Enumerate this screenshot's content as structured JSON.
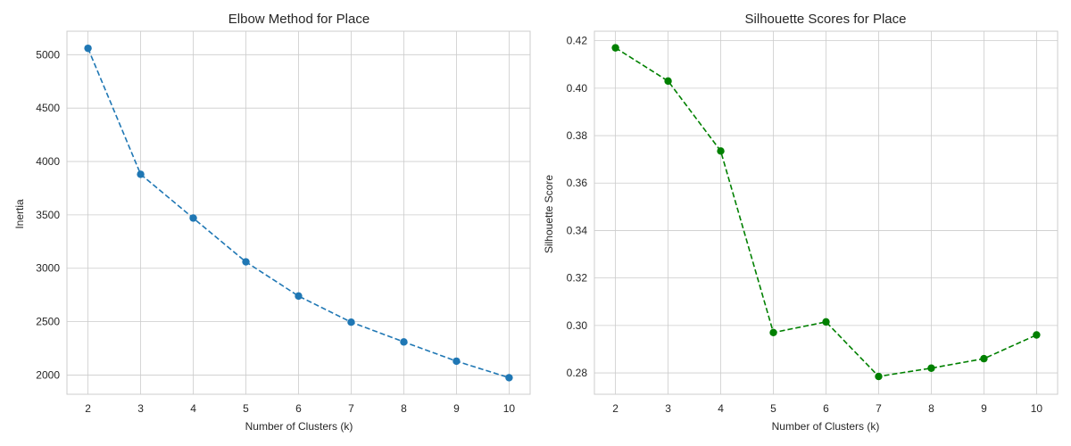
{
  "chart_data": [
    {
      "type": "line",
      "title": "Elbow Method for Place",
      "xlabel": "Number of Clusters (k)",
      "ylabel": "Inertia",
      "x": [
        2,
        3,
        4,
        5,
        6,
        7,
        8,
        9,
        10
      ],
      "y": [
        5060,
        3880,
        3470,
        3060,
        2740,
        2495,
        2310,
        2130,
        1975
      ],
      "xlim": [
        1.6,
        10.4
      ],
      "ylim": [
        1820,
        5220
      ],
      "xticks": [
        2,
        3,
        4,
        5,
        6,
        7,
        8,
        9,
        10
      ],
      "yticks": [
        2000,
        2500,
        3000,
        3500,
        4000,
        4500,
        5000
      ],
      "line_style": "dashed",
      "marker": "circle",
      "color": "#1f77b4",
      "grid": true
    },
    {
      "type": "line",
      "title": "Silhouette Scores for Place",
      "xlabel": "Number of Clusters (k)",
      "ylabel": "Silhouette Score",
      "x": [
        2,
        3,
        4,
        5,
        6,
        7,
        8,
        9,
        10
      ],
      "y": [
        0.417,
        0.403,
        0.3735,
        0.297,
        0.3015,
        0.2785,
        0.282,
        0.286,
        0.296
      ],
      "xlim": [
        1.6,
        10.4
      ],
      "ylim": [
        0.271,
        0.424
      ],
      "xticks": [
        2,
        3,
        4,
        5,
        6,
        7,
        8,
        9,
        10
      ],
      "yticks": [
        0.28,
        0.3,
        0.32,
        0.34,
        0.36,
        0.38,
        0.4,
        0.42
      ],
      "ytick_labels": [
        "0.28",
        "0.30",
        "0.32",
        "0.34",
        "0.36",
        "0.38",
        "0.40",
        "0.42"
      ],
      "line_style": "dashed",
      "marker": "circle",
      "color": "#008000",
      "grid": true
    }
  ]
}
